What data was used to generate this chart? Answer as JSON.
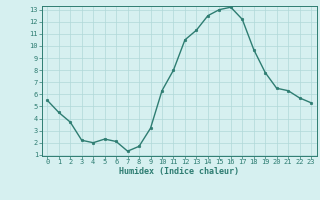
{
  "x": [
    0,
    1,
    2,
    3,
    4,
    5,
    6,
    7,
    8,
    9,
    10,
    11,
    12,
    13,
    14,
    15,
    16,
    17,
    18,
    19,
    20,
    21,
    22,
    23
  ],
  "y": [
    5.5,
    4.5,
    3.7,
    2.2,
    2.0,
    2.3,
    2.1,
    1.3,
    1.7,
    3.2,
    6.3,
    8.0,
    10.5,
    11.3,
    12.5,
    13.0,
    13.2,
    12.2,
    9.7,
    7.8,
    6.5,
    6.3,
    5.7,
    5.3
  ],
  "line_color": "#2e7d72",
  "bg_color": "#d6f0f0",
  "xlabel": "Humidex (Indice chaleur)",
  "ylim": [
    1,
    13
  ],
  "xlim": [
    -0.5,
    23.5
  ],
  "yticks": [
    1,
    2,
    3,
    4,
    5,
    6,
    7,
    8,
    9,
    10,
    11,
    12,
    13
  ],
  "xticks": [
    0,
    1,
    2,
    3,
    4,
    5,
    6,
    7,
    8,
    9,
    10,
    11,
    12,
    13,
    14,
    15,
    16,
    17,
    18,
    19,
    20,
    21,
    22,
    23
  ],
  "grid_color": "#b0d8d8",
  "marker": "o",
  "marker_size": 1.8,
  "line_width": 1.0,
  "tick_fontsize": 5.0,
  "xlabel_fontsize": 6.0
}
